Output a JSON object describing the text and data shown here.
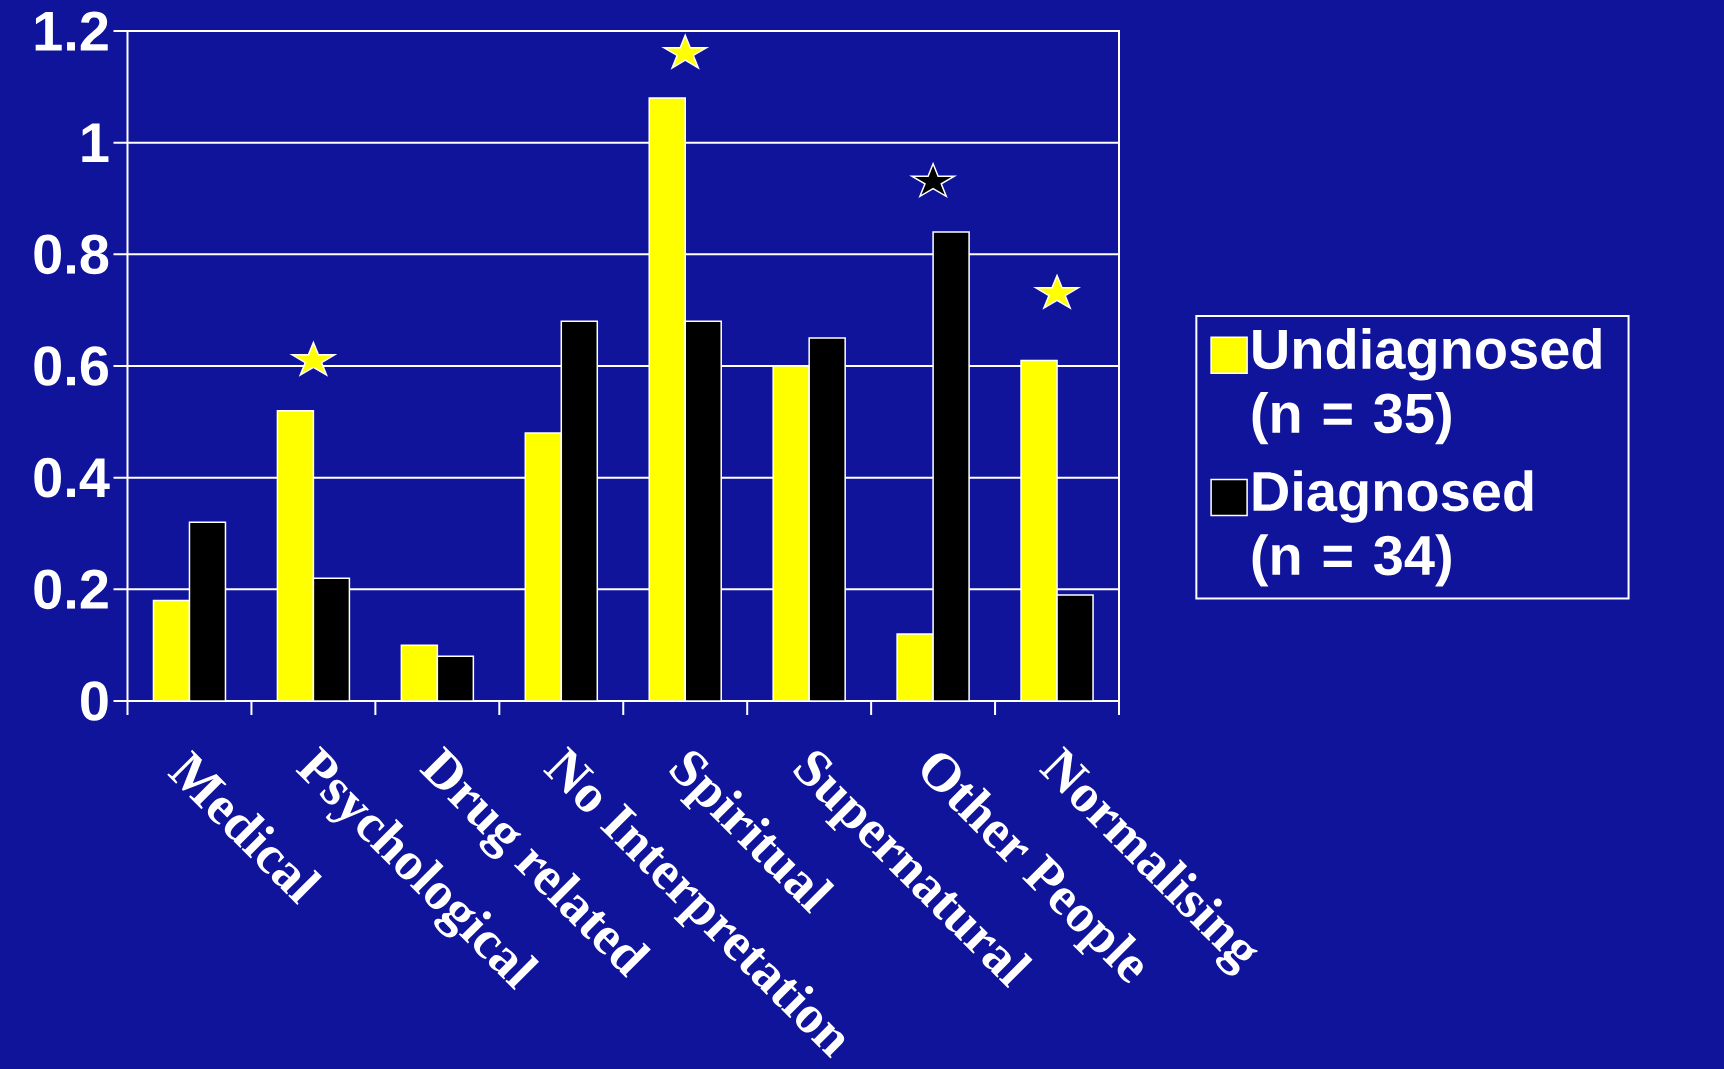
{
  "chart_data": {
    "type": "bar",
    "categories": [
      "Medical",
      "Psychological",
      "Drug related",
      "No Interpretation",
      "Spiritual",
      "Supernatural",
      "Other People",
      "Normalising"
    ],
    "series": [
      {
        "name": "Undiagnosed (n = 35)",
        "color": "#ffff00",
        "values": [
          0.18,
          0.52,
          0.1,
          0.48,
          1.08,
          0.6,
          0.12,
          0.61
        ]
      },
      {
        "name": "Diagnosed (n = 34)",
        "color": "#000000",
        "values": [
          0.32,
          0.22,
          0.08,
          0.68,
          0.68,
          0.65,
          0.84,
          0.19
        ]
      },
      {
        "type": "scatter",
        "marker": "star",
        "x": [
          "Psychological",
          "Spiritual",
          "Other People",
          "Normalising"
        ],
        "values": [
          0.61,
          1.16,
          0.93,
          0.73
        ],
        "colors": [
          "#ffff00",
          "#ffff00",
          "#000000",
          "#ffff00"
        ]
      }
    ],
    "ylim": [
      0,
      1.2
    ],
    "yticks": [
      0,
      0.2,
      0.4,
      0.6,
      0.8,
      1,
      1.2
    ],
    "grid": "y",
    "legend": "right"
  }
}
